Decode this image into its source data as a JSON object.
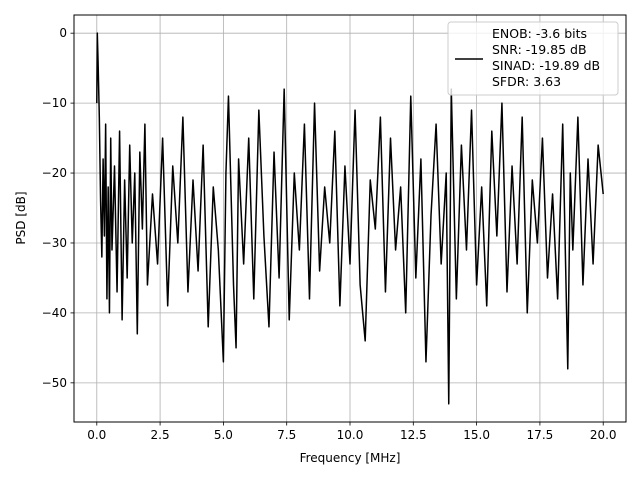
{
  "chart_data": {
    "type": "line",
    "title": "",
    "xlabel": "Frequency [MHz]",
    "ylabel": "PSD [dB]",
    "xlim": [
      -0.9,
      20.9
    ],
    "ylim": [
      -55.6,
      2.6
    ],
    "xticks": [
      0.0,
      2.5,
      5.0,
      7.5,
      10.0,
      12.5,
      15.0,
      17.5,
      20.0
    ],
    "xtick_labels": [
      "0.0",
      "2.5",
      "5.0",
      "7.5",
      "10.0",
      "12.5",
      "15.0",
      "17.5",
      "20.0"
    ],
    "yticks": [
      0,
      -10,
      -20,
      -30,
      -40,
      -50
    ],
    "ytick_labels": [
      "0",
      "−10",
      "−20",
      "−30",
      "−40",
      "−50"
    ],
    "grid": true,
    "legend_position": "top-right",
    "legend_lines": [
      "ENOB: -3.6 bits",
      "SNR: -19.85 dB",
      "SINAD: -19.89 dB",
      "SFDR: 3.63"
    ],
    "series": [
      {
        "color": "#000000",
        "note_description": "noise-like PSD trace",
        "x": [
          0.0,
          0.02,
          0.05,
          0.1,
          0.15,
          0.2,
          0.25,
          0.3,
          0.35,
          0.4,
          0.45,
          0.5,
          0.55,
          0.6,
          0.7,
          0.8,
          0.9,
          1.0,
          1.1,
          1.2,
          1.3,
          1.4,
          1.5,
          1.6,
          1.7,
          1.8,
          1.9,
          2.0,
          2.2,
          2.4,
          2.6,
          2.8,
          3.0,
          3.2,
          3.4,
          3.6,
          3.8,
          4.0,
          4.2,
          4.4,
          4.6,
          4.8,
          5.0,
          5.1,
          5.2,
          5.4,
          5.5,
          5.6,
          5.8,
          6.0,
          6.2,
          6.4,
          6.6,
          6.8,
          7.0,
          7.2,
          7.4,
          7.6,
          7.8,
          8.0,
          8.2,
          8.4,
          8.6,
          8.8,
          9.0,
          9.2,
          9.4,
          9.6,
          9.8,
          10.0,
          10.2,
          10.4,
          10.6,
          10.8,
          11.0,
          11.2,
          11.4,
          11.6,
          11.8,
          12.0,
          12.2,
          12.4,
          12.6,
          12.8,
          13.0,
          13.2,
          13.4,
          13.6,
          13.8,
          13.9,
          14.0,
          14.2,
          14.4,
          14.6,
          14.8,
          15.0,
          15.2,
          15.4,
          15.6,
          15.8,
          16.0,
          16.2,
          16.4,
          16.6,
          16.8,
          17.0,
          17.2,
          17.4,
          17.6,
          17.8,
          18.0,
          18.2,
          18.4,
          18.6,
          18.7,
          18.8,
          19.0,
          19.2,
          19.4,
          19.6,
          19.8,
          20.0
        ],
        "y": [
          -10,
          0,
          -4,
          -12,
          -24,
          -32,
          -18,
          -29,
          -13,
          -38,
          -22,
          -40,
          -15,
          -31,
          -19,
          -37,
          -14,
          -41,
          -21,
          -35,
          -16,
          -30,
          -20,
          -43,
          -17,
          -28,
          -13,
          -36,
          -23,
          -33,
          -15,
          -39,
          -19,
          -30,
          -12,
          -37,
          -21,
          -34,
          -16,
          -42,
          -22,
          -31,
          -47,
          -20,
          -9,
          -36,
          -45,
          -18,
          -33,
          -15,
          -38,
          -11,
          -29,
          -42,
          -17,
          -35,
          -8,
          -41,
          -20,
          -31,
          -13,
          -38,
          -10,
          -34,
          -22,
          -30,
          -14,
          -39,
          -19,
          -33,
          -11,
          -36,
          -44,
          -21,
          -28,
          -12,
          -37,
          -15,
          -31,
          -22,
          -40,
          -9,
          -35,
          -18,
          -47,
          -26,
          -13,
          -33,
          -20,
          -53,
          -8,
          -38,
          -16,
          -31,
          -11,
          -36,
          -22,
          -39,
          -14,
          -29,
          -10,
          -37,
          -19,
          -33,
          -12,
          -40,
          -21,
          -30,
          -15,
          -35,
          -23,
          -38,
          -13,
          -48,
          -20,
          -31,
          -12,
          -36,
          -18,
          -33,
          -16,
          -23
        ]
      }
    ]
  }
}
